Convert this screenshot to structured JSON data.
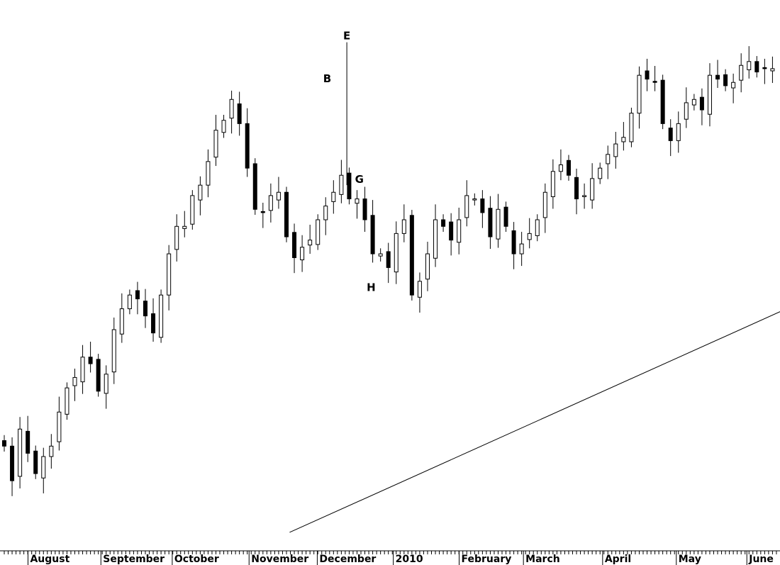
{
  "chart_data": {
    "type": "candlestick",
    "title": "",
    "xlabel": "",
    "ylabel": "",
    "ylim": [
      0,
      100
    ],
    "grid": false,
    "legend": "none",
    "up_color": "#ffffff",
    "down_color": "#000000",
    "closes": [
      18.8,
      12.5,
      21.9,
      17.5,
      13.8,
      16.9,
      18.8,
      25,
      29.4,
      31.3,
      35,
      33.8,
      28.8,
      31.9,
      40,
      43.8,
      46.3,
      45.6,
      42.5,
      39.4,
      46.3,
      53.8,
      58.8,
      58.8,
      64.4,
      66.3,
      70.6,
      76.3,
      78.1,
      81.9,
      77.5,
      69.4,
      61.9,
      61.3,
      64.4,
      65,
      56.9,
      53.1,
      55,
      56.3,
      60,
      62.5,
      65,
      68.1,
      63.8,
      63.8,
      60,
      53.8,
      53.8,
      51.3,
      57.5,
      60,
      46.3,
      48.8,
      53.8,
      60,
      58.8,
      56.3,
      60,
      64.4,
      63.8,
      61.3,
      56.9,
      61.9,
      58.8,
      53.8,
      55.6,
      57.5,
      60,
      65,
      68.8,
      70,
      68.1,
      63.8,
      64.4,
      67.5,
      69.4,
      71.9,
      73.8,
      75,
      79.4,
      86.3,
      85.6,
      85,
      77.5,
      74.4,
      77.5,
      81.3,
      81.9,
      80,
      86.3,
      85.6,
      84.4,
      85,
      88.1,
      88.8,
      86.9,
      87.5,
      87.5
    ],
    "x_tick_labels": [
      {
        "label": "August",
        "index": 3.3
      },
      {
        "label": "September",
        "index": 12.6
      },
      {
        "label": "October",
        "index": 21.7
      },
      {
        "label": "November",
        "index": 31.5
      },
      {
        "label": "December",
        "index": 40.2
      },
      {
        "label": "2010",
        "index": 49.9
      },
      {
        "label": "February",
        "index": 58.3
      },
      {
        "label": "March",
        "index": 66.5
      },
      {
        "label": "April",
        "index": 76.6
      },
      {
        "label": "May",
        "index": 86
      },
      {
        "label": "June",
        "index": 95
      }
    ],
    "annotations": [
      {
        "label": "E",
        "index": 43.7,
        "price": 92.3,
        "line_to_price": 66.3
      },
      {
        "label": "B",
        "index": 41.2,
        "price": 84.5
      },
      {
        "label": "G",
        "index": 45.3,
        "price": 66.2
      },
      {
        "label": "H",
        "index": 46.8,
        "price": 46.5
      }
    ],
    "trendline": {
      "from": [
        36.4,
        3.1
      ],
      "to": [
        104,
        46.5
      ]
    }
  }
}
